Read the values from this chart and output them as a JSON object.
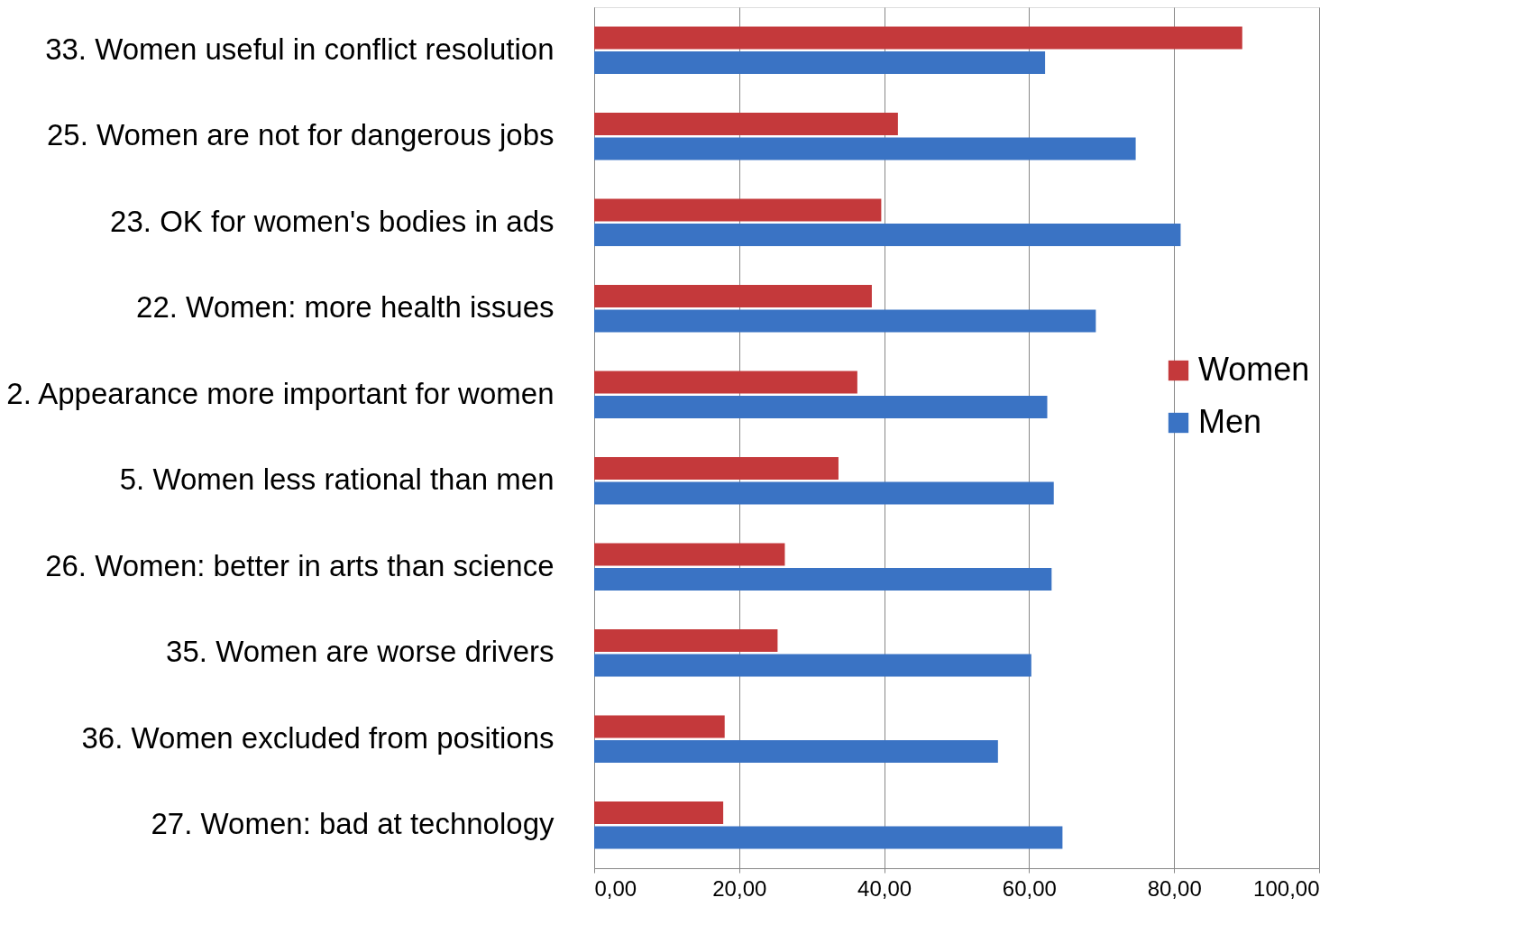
{
  "chart_data": {
    "type": "bar",
    "orientation": "horizontal",
    "categories": [
      "33. Women useful in conflict resolution",
      "25. Women are not for dangerous jobs",
      "23. OK for women's bodies in ads",
      "22. Women: more health issues",
      "2. Appearance more important for women",
      "5. Women less rational than men",
      "26. Women: better in arts than science",
      "35. Women are worse drivers",
      "36. Women excluded from positions",
      "27. Women: bad at technology"
    ],
    "series": [
      {
        "name": "Women",
        "color": "#c4393b",
        "values": [
          89.4,
          41.9,
          39.6,
          38.3,
          36.3,
          33.7,
          26.3,
          25.3,
          18.0,
          17.8
        ]
      },
      {
        "name": "Men",
        "color": "#3a73c4",
        "values": [
          62.2,
          74.7,
          80.9,
          69.2,
          62.5,
          63.4,
          63.1,
          60.3,
          55.7,
          64.6
        ]
      }
    ],
    "xlim": [
      0,
      100
    ],
    "xticks": [
      {
        "value": 0,
        "label": "0,00"
      },
      {
        "value": 20,
        "label": "20,00"
      },
      {
        "value": 40,
        "label": "40,00"
      },
      {
        "value": 60,
        "label": "60,00"
      },
      {
        "value": 80,
        "label": "80,00"
      },
      {
        "value": 100,
        "label": "100,00"
      }
    ],
    "grid": "x",
    "legend": "right"
  }
}
